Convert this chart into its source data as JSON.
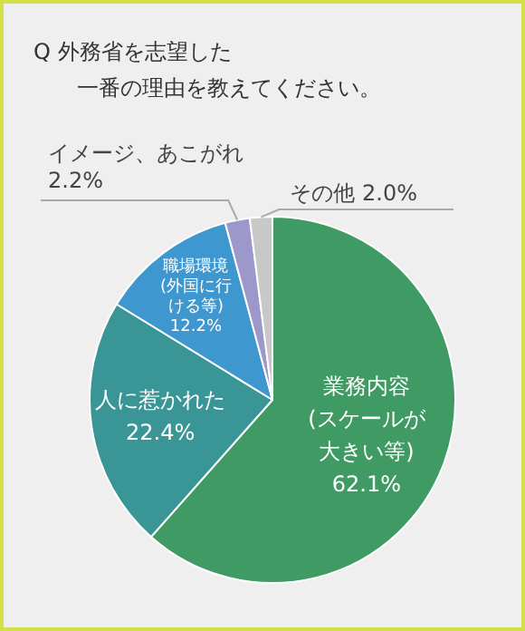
{
  "chart_data": {
    "type": "pie",
    "title": "Q 外務省を志望した一番の理由を教えてください。",
    "categories": [
      "業務内容(スケールが大きい等)",
      "人に惹かれた",
      "職場環境(外国に行ける等)",
      "イメージ、あこがれ",
      "その他"
    ],
    "values": [
      62.1,
      22.4,
      12.2,
      2.2,
      2.0
    ],
    "value_labels": [
      "62.1%",
      "22.4%",
      "12.2%",
      "2.2%",
      "2.0%"
    ],
    "colors": [
      "#3f9b63",
      "#3a9696",
      "#3f97cf",
      "#9c98cc",
      "#c8c8c8"
    ]
  }
}
